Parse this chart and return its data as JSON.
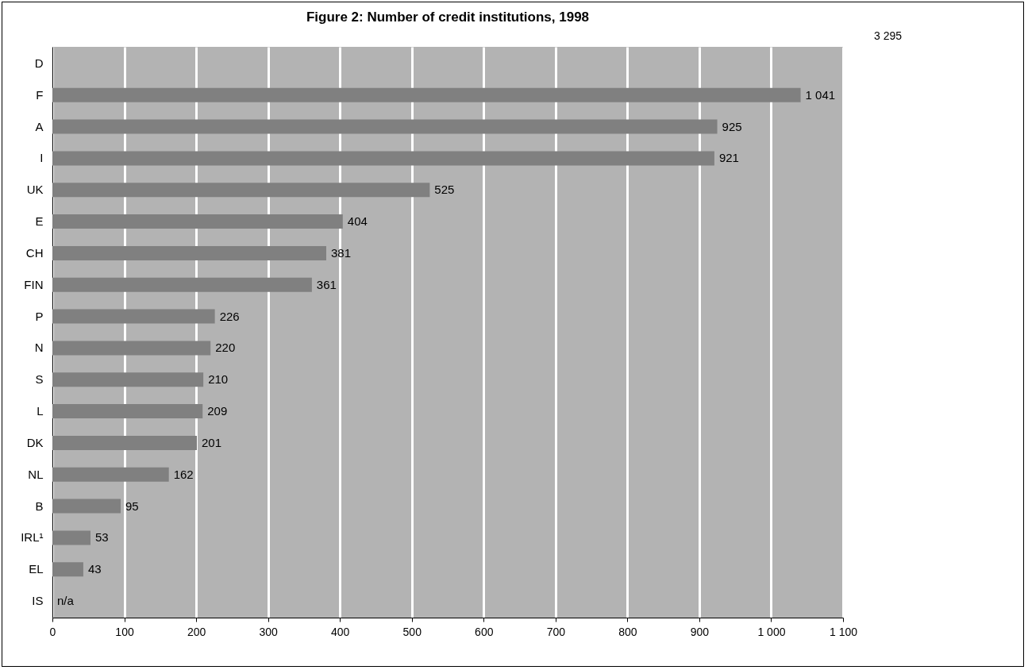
{
  "chart_data": {
    "type": "bar",
    "orientation": "horizontal",
    "title": "Figure 2: Number of credit institutions, 1998",
    "categories": [
      "D",
      "F",
      "A",
      "I",
      "UK",
      "E",
      "CH",
      "FIN",
      "P",
      "N",
      "S",
      "L",
      "DK",
      "NL",
      "B",
      "IRL¹",
      "EL",
      "IS"
    ],
    "values": [
      null,
      1041,
      925,
      921,
      525,
      404,
      381,
      361,
      226,
      220,
      210,
      209,
      201,
      162,
      95,
      53,
      43,
      null
    ],
    "annotations": [
      "3 295"
    ],
    "value_labels": [
      null,
      "1 041",
      "925",
      "921",
      "525",
      "404",
      "381",
      "361",
      "226",
      "220",
      "210",
      "209",
      "201",
      "162",
      "95",
      "53",
      "43",
      "n/a"
    ],
    "color": "#808080",
    "xlim": [
      0,
      1100
    ],
    "xticks": [
      0,
      100,
      200,
      300,
      400,
      500,
      600,
      700,
      800,
      900,
      {
        "value": 1000,
        "label": "1 000"
      },
      {
        "value": 1100,
        "label": "1 100"
      }
    ],
    "grid": "x"
  }
}
